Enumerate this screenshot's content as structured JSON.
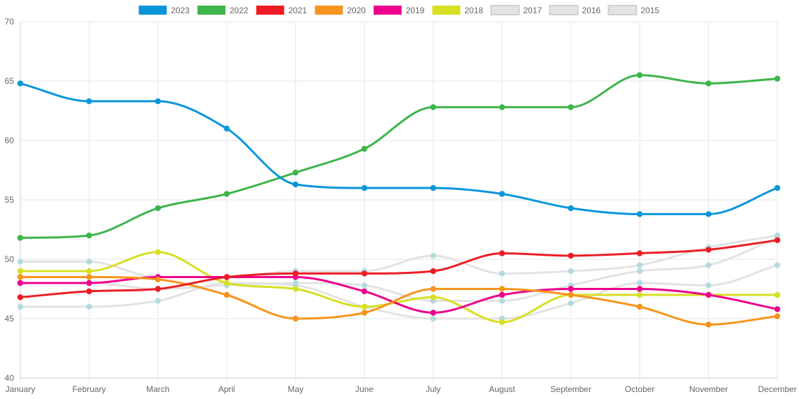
{
  "chart_data": {
    "type": "line",
    "title": "",
    "xlabel": "",
    "ylabel": "",
    "ylim": [
      40,
      70
    ],
    "yticks": [
      40,
      45,
      50,
      55,
      60,
      65,
      70
    ],
    "grid": true,
    "legend_position": "top",
    "categories": [
      "January",
      "February",
      "March",
      "April",
      "May",
      "June",
      "July",
      "August",
      "September",
      "October",
      "November",
      "December"
    ],
    "series": [
      {
        "name": "2023",
        "color": "#0896DA",
        "values": [
          64.8,
          63.3,
          63.3,
          61.0,
          56.3,
          56.0,
          56.0,
          55.5,
          54.3,
          53.8,
          53.8,
          56.0
        ]
      },
      {
        "name": "2022",
        "color": "#3CB54A",
        "values": [
          51.8,
          52.0,
          54.3,
          55.5,
          57.3,
          59.3,
          62.8,
          62.8,
          62.8,
          65.5,
          64.8,
          65.2
        ]
      },
      {
        "name": "2021",
        "color": "#ED1C24",
        "values": [
          46.8,
          47.3,
          47.5,
          48.5,
          48.8,
          48.8,
          49.0,
          50.5,
          50.3,
          50.5,
          50.8,
          51.6
        ]
      },
      {
        "name": "2020",
        "color": "#F7941D",
        "values": [
          48.5,
          48.5,
          48.3,
          47.0,
          45.0,
          45.5,
          47.5,
          47.5,
          47.0,
          46.0,
          44.5,
          45.2
        ]
      },
      {
        "name": "2019",
        "color": "#EC008C",
        "values": [
          48.0,
          48.0,
          48.5,
          48.5,
          48.5,
          47.3,
          45.5,
          47.0,
          47.5,
          47.5,
          47.0,
          45.8
        ]
      },
      {
        "name": "2018",
        "color": "#D7DF23",
        "values": [
          49.0,
          49.0,
          50.6,
          48.0,
          47.5,
          46.0,
          46.8,
          44.7,
          47.0,
          47.0,
          47.0,
          47.0
        ]
      },
      {
        "name": "2017",
        "color": "#E3E3E3",
        "values": [
          49.8,
          49.8,
          48.5,
          48.5,
          49.0,
          49.0,
          50.3,
          48.8,
          49.0,
          49.5,
          51.0,
          52.0
        ]
      },
      {
        "name": "2016",
        "color": "#E3E3E3",
        "values": [
          48.0,
          48.0,
          47.5,
          47.8,
          48.0,
          47.8,
          46.5,
          46.5,
          47.8,
          49.0,
          49.5,
          51.8
        ]
      },
      {
        "name": "2015",
        "color": "#E3E3E3",
        "values": [
          46.0,
          46.0,
          46.5,
          48.0,
          47.8,
          46.0,
          45.0,
          45.0,
          46.3,
          48.0,
          47.8,
          49.5
        ]
      }
    ],
    "marker_color_inactive": "#A9D8DC"
  }
}
